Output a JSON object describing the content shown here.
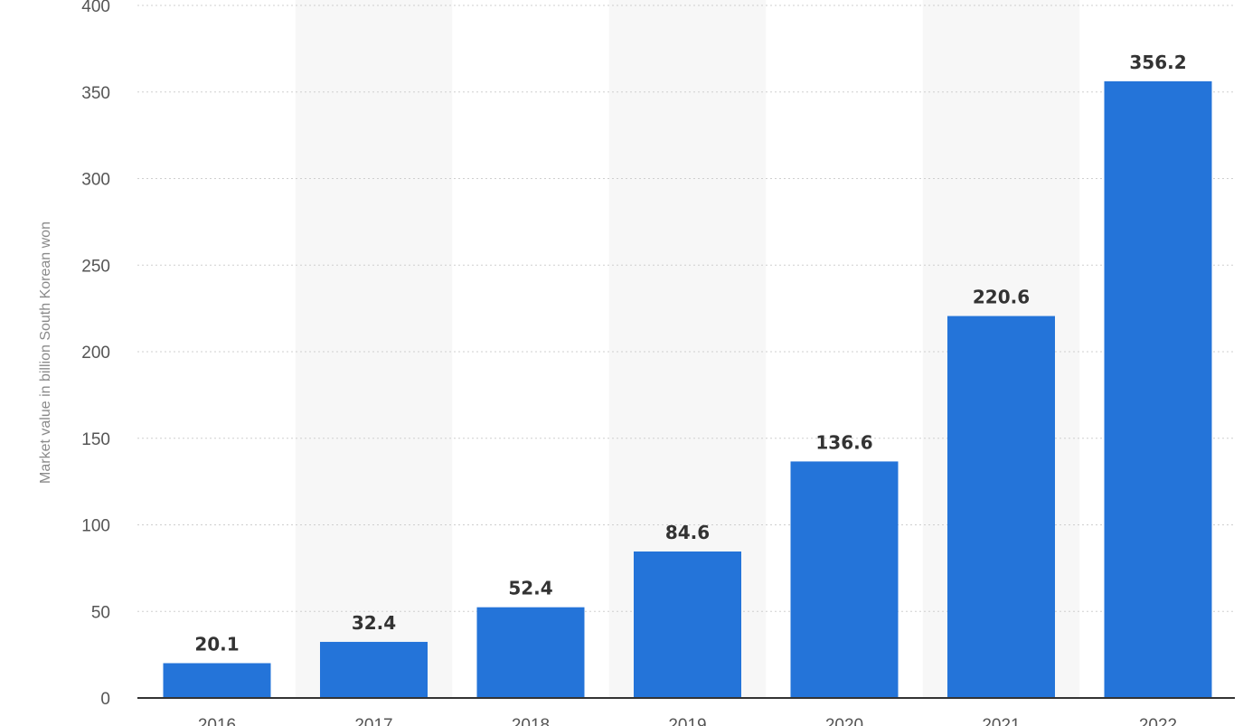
{
  "chart_data": {
    "type": "bar",
    "title": "",
    "xlabel": "",
    "ylabel": "Market value in billion South Korean won",
    "categories": [
      "2016",
      "2017",
      "2018",
      "2019",
      "2020",
      "2021",
      "2022"
    ],
    "values": [
      20.1,
      32.4,
      52.4,
      84.6,
      136.6,
      220.6,
      356.2
    ],
    "value_labels": [
      "20.1",
      "32.4",
      "52.4",
      "84.6",
      "136.6",
      "220.6",
      "356.2"
    ],
    "ylim": [
      0,
      400
    ],
    "yticks": [
      0,
      50,
      100,
      150,
      200,
      250,
      300,
      350,
      400
    ],
    "grid": true,
    "legend": "none",
    "bar_color": "#2474d9",
    "column_band_color": "#f7f7f7"
  }
}
